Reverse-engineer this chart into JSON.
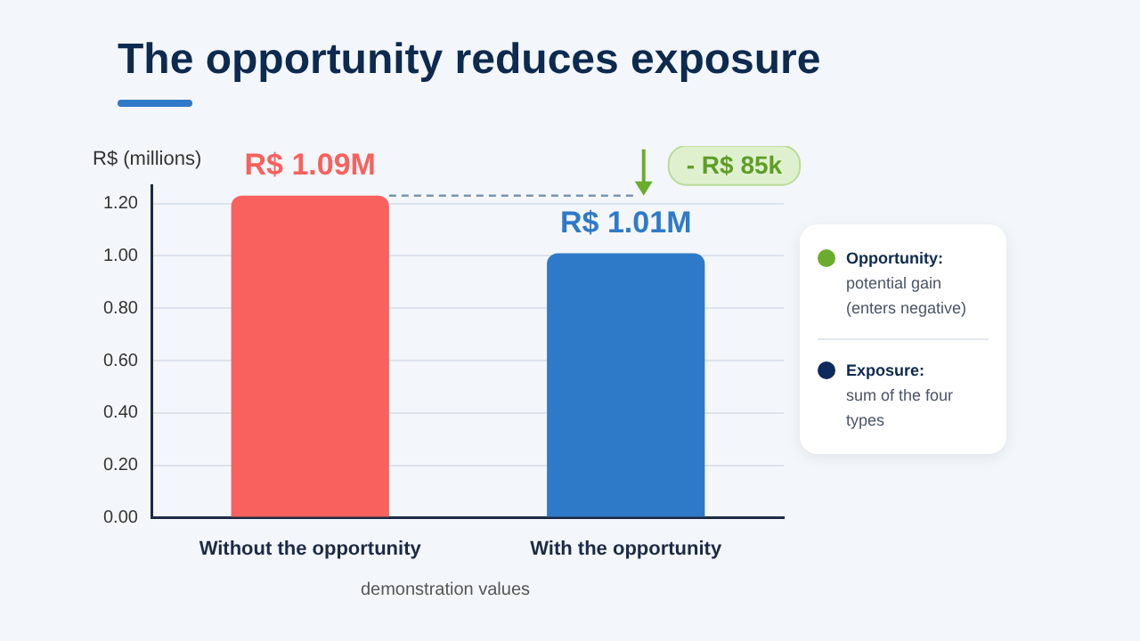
{
  "chart_data": {
    "type": "bar",
    "title": "The opportunity reduces exposure",
    "ylabel": "R$ (millions)",
    "categories": [
      "Without the opportunity",
      "With the opportunity"
    ],
    "values": [
      1.23,
      1.01
    ],
    "colors": [
      "#f8615d",
      "#2f7ac8"
    ],
    "value_labels": [
      "R$ 1.09M",
      "R$ 1.01M"
    ],
    "ylim": [
      0,
      1.27
    ],
    "yticks": [
      {
        "value": 0,
        "label": "0.00"
      },
      {
        "value": 0.2,
        "label": "0.20"
      },
      {
        "value": 0.4,
        "label": "0.40"
      },
      {
        "value": 0.6,
        "label": "0.60"
      },
      {
        "value": 0.8,
        "label": "0.80"
      },
      {
        "value": 1,
        "label": "1.00"
      },
      {
        "value": 1.2,
        "label": "1.20"
      }
    ],
    "grid": "y",
    "legend": false,
    "annotations": [
      "- R$ 85k",
      "Opportunity:",
      "potential gain (enters negative)",
      "Exposure:",
      "sum of the four types",
      "demonstration values"
    ]
  }
}
